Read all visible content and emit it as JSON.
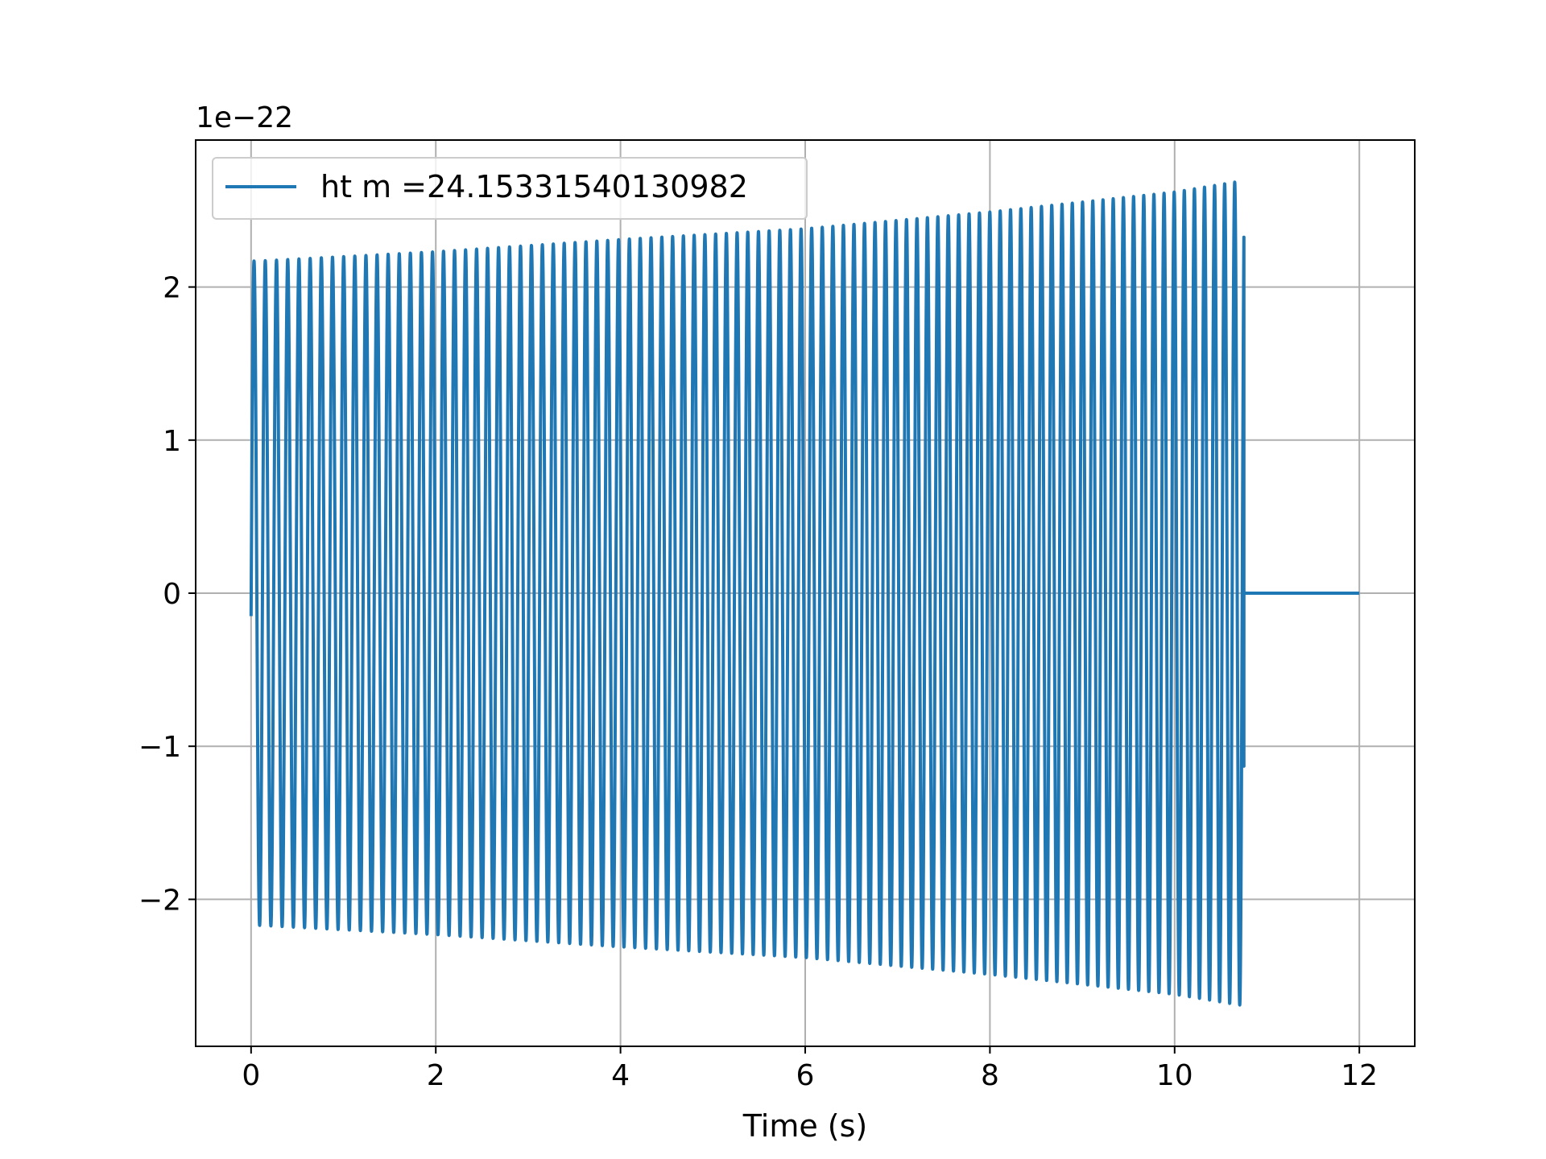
{
  "chart_data": {
    "type": "line",
    "title": "",
    "xlabel": "Time (s)",
    "ylabel": "",
    "y_offset_label": "1e−22",
    "xlim": [
      -0.6,
      12.6
    ],
    "ylim": [
      -2.96,
      2.96
    ],
    "grid": true,
    "legend_position": "upper left",
    "xticks": [
      0,
      2,
      4,
      6,
      8,
      10,
      12
    ],
    "xtick_labels": [
      "0",
      "2",
      "4",
      "6",
      "8",
      "10",
      "12"
    ],
    "yticks": [
      -2,
      -1,
      0,
      1,
      2
    ],
    "ytick_labels": [
      "−2",
      "−1",
      "0",
      "1",
      "2"
    ],
    "series": [
      {
        "name": "ht m =24.15331540130982",
        "color": "#1f77b4",
        "signal_start_value": -0.15,
        "signal_end_time": 10.75,
        "end_time": 12.0,
        "envelope": [
          {
            "t": 0.1,
            "amplitude": 2.17
          },
          {
            "t": 2.0,
            "amplitude": 2.23
          },
          {
            "t": 4.0,
            "amplitude": 2.31
          },
          {
            "t": 6.0,
            "amplitude": 2.38
          },
          {
            "t": 8.0,
            "amplitude": 2.49
          },
          {
            "t": 10.0,
            "amplitude": 2.62
          },
          {
            "t": 10.7,
            "amplitude": 2.69
          }
        ],
        "frequency_hz": [
          {
            "t": 0.0,
            "f": 8.2
          },
          {
            "t": 5.0,
            "f": 8.6
          },
          {
            "t": 10.75,
            "f": 9.2
          }
        ],
        "final_value": -1.13
      }
    ]
  },
  "legend": {
    "label": "ht m =24.15331540130982"
  }
}
